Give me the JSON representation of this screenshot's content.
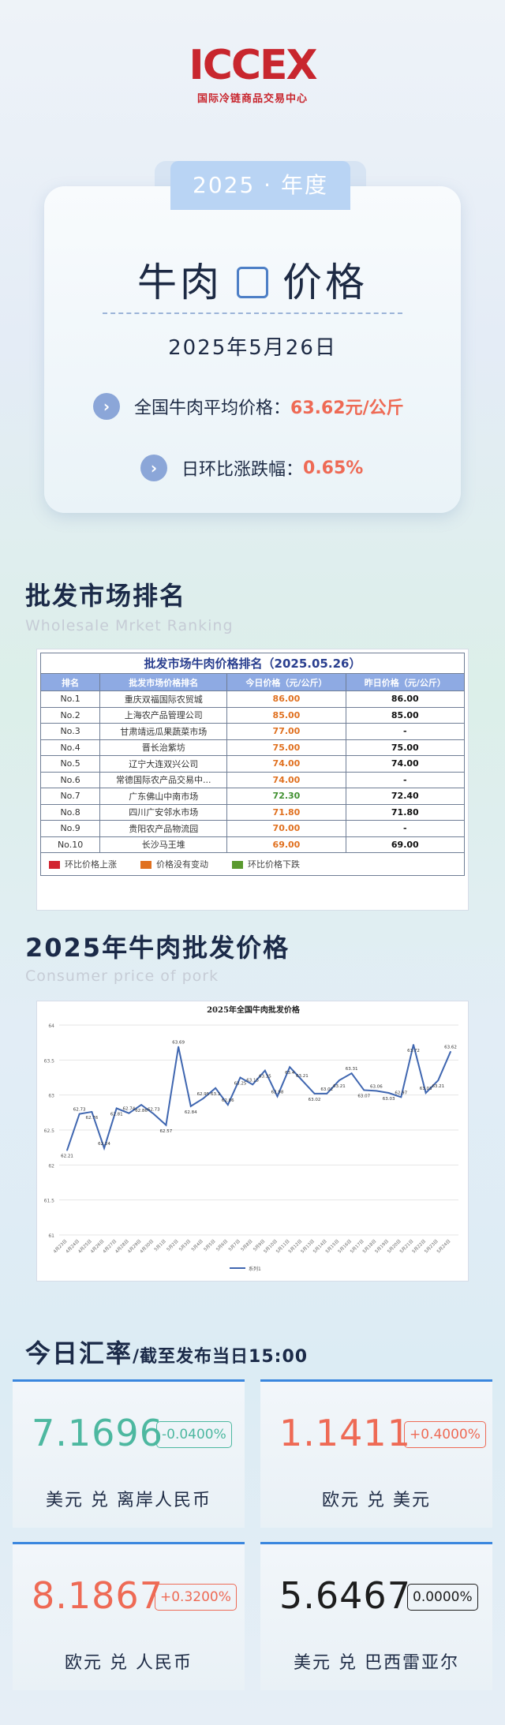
{
  "logo": {
    "mark": "ICCEX",
    "subtitle": "国际冷链商品交易中心"
  },
  "hero": {
    "year_tab": "2025 · 年度",
    "title_left": "牛肉",
    "title_right": "价格",
    "date": "2025年5月26日",
    "stat1_label": "全国牛肉平均价格：",
    "stat1_value": "63.62元/公斤",
    "stat2_label": "日环比涨跌幅：",
    "stat2_value": "0.65%"
  },
  "ranking": {
    "heading": "批发市场排名",
    "heading_en": "Wholesale Mrket Ranking",
    "table_title": "批发市场牛肉价格排名（2025.05.26）",
    "columns": [
      "排名",
      "批发市场价格排名",
      "今日价格（元/公斤）",
      "昨日价格（元/公斤）"
    ],
    "rows": [
      {
        "rank": "No.1",
        "market": "重庆双福国际农贸城",
        "today": "86.00",
        "yesterday": "86.00",
        "trend": "flat"
      },
      {
        "rank": "No.2",
        "market": "上海农产品管理公司",
        "today": "85.00",
        "yesterday": "85.00",
        "trend": "flat"
      },
      {
        "rank": "No.3",
        "market": "甘肃靖远瓜果蔬菜市场",
        "today": "77.00",
        "yesterday": "-",
        "trend": "flat"
      },
      {
        "rank": "No.4",
        "market": "晋长治紫坊",
        "today": "75.00",
        "yesterday": "75.00",
        "trend": "flat"
      },
      {
        "rank": "No.5",
        "market": "辽宁大连双兴公司",
        "today": "74.00",
        "yesterday": "74.00",
        "trend": "flat"
      },
      {
        "rank": "No.6",
        "market": "常德国际农产品交易中...",
        "today": "74.00",
        "yesterday": "-",
        "trend": "flat"
      },
      {
        "rank": "No.7",
        "market": "广东佛山中南市场",
        "today": "72.30",
        "yesterday": "72.40",
        "trend": "down"
      },
      {
        "rank": "No.8",
        "market": "四川广安邻水市场",
        "today": "71.80",
        "yesterday": "71.80",
        "trend": "flat"
      },
      {
        "rank": "No.9",
        "market": "贵阳农产品物流园",
        "today": "70.00",
        "yesterday": "-",
        "trend": "flat"
      },
      {
        "rank": "No.10",
        "market": "长沙马王堆",
        "today": "69.00",
        "yesterday": "69.00",
        "trend": "flat"
      }
    ],
    "legend": [
      {
        "label": "环比价格上涨",
        "color": "#d22430"
      },
      {
        "label": "价格没有变动",
        "color": "#e0701f"
      },
      {
        "label": "环比价格下跌",
        "color": "#5a9a2f"
      }
    ],
    "trend_colors": {
      "up": "#d22430",
      "flat": "#e0701f",
      "down": "#3f8f2f"
    }
  },
  "price_section": {
    "heading": "2025年牛肉批发价格",
    "heading_en": "Consumer price of pork"
  },
  "chart_data": {
    "type": "line",
    "title": "2025年全国牛肉批发价格",
    "xlabel": "",
    "ylabel": "",
    "ylim": [
      61,
      64
    ],
    "yticks": [
      "61",
      "61.5",
      "62",
      "62.5",
      "63",
      "63.5",
      "64"
    ],
    "series": [
      {
        "name": "系列1",
        "color": "#3f66b0",
        "values": [
          62.21,
          62.73,
          62.76,
          62.24,
          62.81,
          62.74,
          62.86,
          62.73,
          62.57,
          63.69,
          62.84,
          62.95,
          63.1,
          62.86,
          63.25,
          63.15,
          63.35,
          62.98,
          63.4,
          63.21,
          63.02,
          63.02,
          63.21,
          63.31,
          63.07,
          63.06,
          63.03,
          62.97,
          63.72,
          63.03,
          63.21,
          63.62
        ],
        "labels": [
          "62.21",
          "62.73",
          "62.76",
          "62.24",
          "62.81",
          "62.74",
          "62.86",
          "62.73",
          "62.57",
          "63.69",
          "62.84",
          "62.95",
          "63.1",
          "62.86",
          "63.25",
          "63.15",
          "63.35",
          "62.98",
          "63.4",
          "63.21",
          "63.02",
          "63.02",
          "63.21",
          "63.31",
          "63.07",
          "63.06",
          "63.03",
          "62.97",
          "63.72",
          "63.03",
          "63.21",
          "63.62"
        ]
      }
    ],
    "categories": [
      "4月23日",
      "4月24日",
      "4月25日",
      "4月26日",
      "4月27日",
      "4月28日",
      "4月29日",
      "4月30日",
      "5月1日",
      "5月2日",
      "5月3日",
      "5月4日",
      "5月5日",
      "5月6日",
      "5月7日",
      "5月8日",
      "5月9日",
      "5月10日",
      "5月11日",
      "5月12日",
      "5月13日",
      "5月14日",
      "5月15日",
      "5月16日",
      "5月17日",
      "5月18日",
      "5月19日",
      "5月20日",
      "5月21日",
      "5月22日",
      "5月23日",
      "5月24日"
    ],
    "legend_position": "bottom",
    "grid": true
  },
  "fx": {
    "title": "今日汇率",
    "subtitle": "/截至发布当日15:00",
    "cards": [
      {
        "value": "7.1696",
        "change": "-0.0400%",
        "pair": "美元 兑 离岸人民币",
        "color": "#4db8a0"
      },
      {
        "value": "1.1411",
        "change": "+0.4000%",
        "pair": "欧元 兑 美元",
        "color": "#ee6a55"
      },
      {
        "value": "8.1867",
        "change": "+0.3200%",
        "pair": "欧元 兑 人民币",
        "color": "#ee6a55"
      },
      {
        "value": "5.6467",
        "change": "0.0000%",
        "pair": "美元 兑 巴西雷亚尔",
        "color": "#1d1d1d"
      }
    ]
  }
}
